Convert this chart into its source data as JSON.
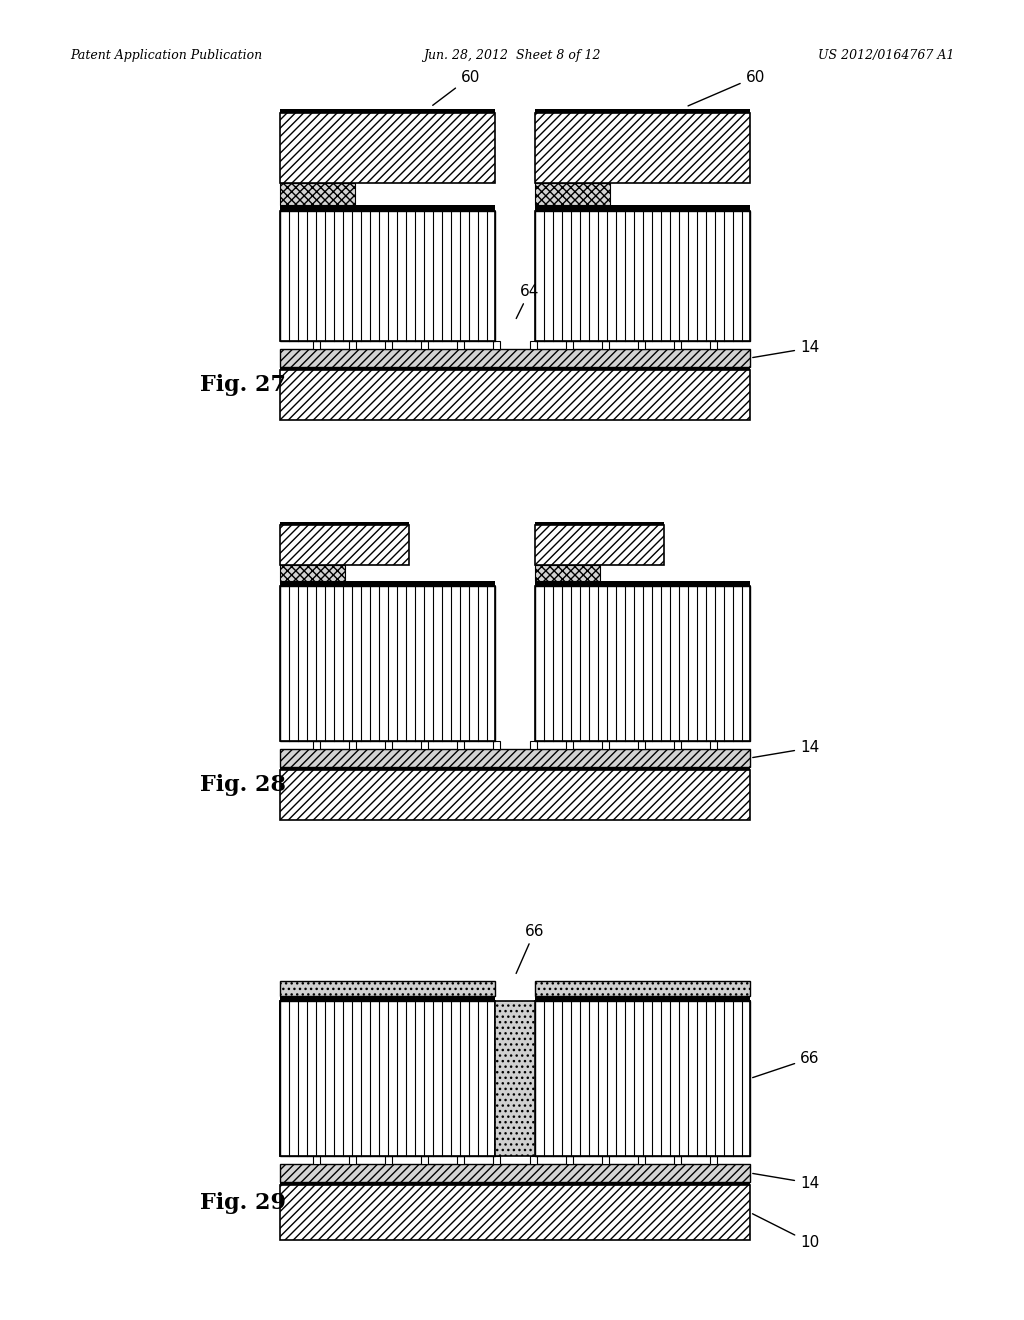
{
  "background_color": "#ffffff",
  "header_left": "Patent Application Publication",
  "header_center": "Jun. 28, 2012  Sheet 8 of 12",
  "header_right": "US 2012/0164767 A1",
  "fig27_label": "Fig. 27",
  "fig28_label": "Fig. 28",
  "fig29_label": "Fig. 29",
  "labels": {
    "60": "60",
    "64": "64",
    "14": "14",
    "66": "66",
    "10": "10"
  }
}
